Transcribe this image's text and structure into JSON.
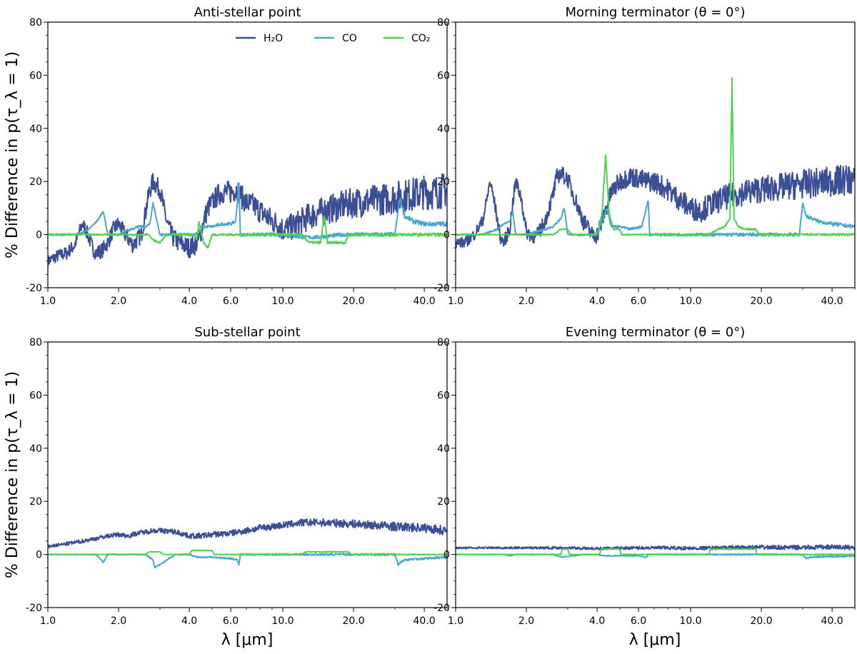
{
  "figure": {
    "ylabel": "% Difference in p(τ_λ = 1)",
    "xlabel": "λ [μm]"
  },
  "legend": {
    "location": "upper-right of first panel",
    "entries": [
      {
        "name": "H₂O",
        "color": "#3a4f96"
      },
      {
        "name": "CO",
        "color": "#4aa6cc"
      },
      {
        "name": "CO₂",
        "color": "#4fd34f"
      }
    ]
  },
  "chart_data": [
    {
      "type": "line",
      "title": "Anti-stellar point",
      "xlabel": "λ [μm]",
      "ylabel": "% Difference in p(τ_λ = 1)",
      "xscale": "log",
      "xlim": [
        1.0,
        50.0
      ],
      "ylim": [
        -20,
        80
      ],
      "xticks": [
        1.0,
        2.0,
        4.0,
        6.0,
        10.0,
        20.0,
        40.0
      ],
      "yticks": [
        -20,
        0,
        20,
        40,
        60,
        80
      ],
      "series": [
        {
          "name": "H₂O",
          "color": "#3a4f96",
          "noise": 4.5,
          "x": [
            1.0,
            1.1,
            1.2,
            1.3,
            1.35,
            1.4,
            1.45,
            1.55,
            1.6,
            1.7,
            1.8,
            1.9,
            2.0,
            2.1,
            2.3,
            2.5,
            2.6,
            2.7,
            2.8,
            3.0,
            3.2,
            3.4,
            3.6,
            3.8,
            4.0,
            4.2,
            4.4,
            4.6,
            4.8,
            5.0,
            5.3,
            5.6,
            6.0,
            6.4,
            6.7,
            7.0,
            7.5,
            8.0,
            8.5,
            9.0,
            9.5,
            10.0,
            11.0,
            12.0,
            13.0,
            15.0,
            18.0,
            20.0,
            25.0,
            30.0,
            35.0,
            40.0,
            45.0,
            50.0
          ],
          "y": [
            -10,
            -8,
            -7,
            -4,
            0,
            4,
            2,
            -5,
            -7,
            -6,
            -3,
            2,
            4,
            1,
            -4,
            0,
            8,
            16,
            20,
            17,
            5,
            -1,
            -3,
            -4,
            -5,
            -4,
            -2,
            5,
            10,
            12,
            15,
            16,
            16,
            17,
            14,
            12,
            11,
            9,
            7,
            5,
            4,
            2,
            3,
            5,
            7,
            9,
            11,
            12,
            13,
            14,
            15,
            16,
            16,
            17
          ]
        },
        {
          "name": "CO",
          "color": "#4aa6cc",
          "noise": 0.6,
          "x": [
            1.0,
            1.35,
            1.5,
            1.65,
            1.72,
            1.8,
            2.0,
            2.4,
            2.6,
            2.72,
            2.8,
            3.0,
            4.2,
            4.6,
            5.0,
            5.5,
            6.0,
            6.3,
            6.5,
            6.6,
            7.0,
            10.0,
            12.0,
            14.0,
            18.0,
            30.0,
            31.5,
            33.0,
            36.0,
            40.0,
            50.0
          ],
          "y": [
            0,
            0,
            2,
            6,
            9,
            0,
            0,
            3,
            3,
            4,
            12,
            0,
            0,
            3,
            3,
            4,
            4,
            5,
            19,
            0,
            0,
            0,
            -1,
            -1,
            0,
            0,
            14,
            7,
            5,
            4,
            4
          ]
        },
        {
          "name": "CO₂",
          "color": "#4fd34f",
          "noise": 0.4,
          "x": [
            1.0,
            2.5,
            2.7,
            2.8,
            3.0,
            3.2,
            4.0,
            4.2,
            4.3,
            4.4,
            4.6,
            4.8,
            5.0,
            12.0,
            13.0,
            14.5,
            15.0,
            15.5,
            16.0,
            17.5,
            18.5,
            19.0,
            50.0
          ],
          "y": [
            0,
            0,
            0,
            -2,
            -3,
            0,
            0,
            0,
            -2,
            5,
            -3,
            -5,
            0,
            0,
            -3,
            -3,
            7,
            -3,
            -3,
            -3,
            -3,
            0,
            0
          ]
        }
      ]
    },
    {
      "type": "line",
      "title": "Morning terminator (θ = 0°)",
      "xlabel": "λ [μm]",
      "ylabel": "",
      "xscale": "log",
      "xlim": [
        1.0,
        50.0
      ],
      "ylim": [
        -20,
        80
      ],
      "xticks": [
        1.0,
        2.0,
        4.0,
        6.0,
        10.0,
        20.0,
        40.0
      ],
      "yticks": [
        -20,
        0,
        20,
        40,
        60,
        80
      ],
      "series": [
        {
          "name": "H₂O",
          "color": "#3a4f96",
          "noise": 4.0,
          "x": [
            1.0,
            1.1,
            1.2,
            1.3,
            1.35,
            1.4,
            1.45,
            1.55,
            1.6,
            1.7,
            1.75,
            1.8,
            1.9,
            2.0,
            2.2,
            2.4,
            2.6,
            2.7,
            2.8,
            3.0,
            3.2,
            3.5,
            3.8,
            4.0,
            4.3,
            4.6,
            5.0,
            5.5,
            6.0,
            6.5,
            7.0,
            8.0,
            9.0,
            10.0,
            11.0,
            12.0,
            14.0,
            17.0,
            20.0,
            25.0,
            30.0,
            40.0,
            50.0
          ],
          "y": [
            -3,
            -3,
            0,
            5,
            12,
            20,
            14,
            -1,
            -3,
            2,
            12,
            20,
            14,
            1,
            -1,
            5,
            15,
            22,
            23,
            21,
            14,
            5,
            0,
            0,
            8,
            16,
            20,
            22,
            21,
            20,
            20,
            17,
            13,
            10,
            9,
            11,
            14,
            16,
            17,
            18,
            19,
            20,
            21
          ]
        },
        {
          "name": "CO",
          "color": "#4aa6cc",
          "noise": 0.5,
          "x": [
            1.0,
            1.3,
            1.5,
            1.6,
            1.7,
            1.75,
            1.8,
            2.0,
            2.4,
            2.6,
            2.8,
            2.9,
            3.0,
            3.5,
            4.0,
            4.4,
            4.6,
            5.0,
            5.5,
            6.2,
            6.6,
            6.7,
            7.0,
            10.0,
            15.0,
            20.0,
            29.0,
            30.0,
            31.0,
            35.0,
            40.0,
            50.0
          ],
          "y": [
            0,
            0,
            2,
            4,
            5,
            9,
            0,
            0,
            2,
            3,
            6,
            10,
            0,
            0,
            0,
            10,
            3,
            3,
            2,
            3,
            13,
            0,
            0,
            0,
            0,
            0,
            0,
            12,
            7,
            5,
            4,
            3
          ]
        },
        {
          "name": "CO₂",
          "color": "#4fd34f",
          "noise": 0.3,
          "x": [
            1.0,
            2.6,
            2.8,
            3.0,
            3.1,
            4.0,
            4.2,
            4.35,
            4.5,
            4.7,
            5.0,
            5.1,
            12.0,
            13.0,
            14.0,
            14.7,
            15.0,
            15.3,
            16.0,
            17.0,
            19.0,
            19.5,
            50.0
          ],
          "y": [
            0,
            0,
            2,
            2,
            0,
            0,
            8,
            30,
            8,
            2,
            2,
            0,
            0,
            2,
            3,
            6,
            59,
            6,
            3,
            2,
            2,
            0,
            0
          ]
        }
      ]
    },
    {
      "type": "line",
      "title": "Sub-stellar point",
      "xlabel": "λ [μm]",
      "ylabel": "% Difference in p(τ_λ = 1)",
      "xscale": "log",
      "xlim": [
        1.0,
        50.0
      ],
      "ylim": [
        -20,
        80
      ],
      "xticks": [
        1.0,
        2.0,
        4.0,
        6.0,
        10.0,
        20.0,
        40.0
      ],
      "yticks": [
        -20,
        0,
        20,
        40,
        60,
        80
      ],
      "series": [
        {
          "name": "H₂O",
          "color": "#3a4f96",
          "noise": 1.2,
          "x": [
            1.0,
            1.2,
            1.4,
            1.6,
            1.8,
            2.0,
            2.2,
            2.4,
            2.6,
            2.8,
            3.0,
            3.5,
            4.0,
            4.5,
            5.0,
            6.0,
            7.0,
            8.0,
            10.0,
            12.0,
            15.0,
            20.0,
            25.0,
            30.0,
            40.0,
            50.0
          ],
          "y": [
            3,
            4,
            5,
            6,
            7,
            7.5,
            7,
            8,
            8.5,
            9,
            9,
            8.5,
            7,
            7,
            7.5,
            8,
            9,
            10,
            11,
            12,
            12,
            11.5,
            11,
            10.5,
            10,
            9
          ]
        },
        {
          "name": "CO",
          "color": "#4aa6cc",
          "noise": 0.3,
          "x": [
            1.0,
            1.6,
            1.65,
            1.72,
            1.8,
            2.6,
            2.7,
            2.8,
            2.85,
            3.5,
            4.0,
            4.3,
            5.0,
            6.0,
            6.4,
            6.5,
            6.6,
            7.0,
            30.0,
            31.0,
            31.5,
            33.0,
            40.0,
            50.0
          ],
          "y": [
            0,
            0,
            -1,
            -3,
            0,
            0,
            -1,
            -2,
            -5,
            0,
            0,
            -1,
            -1,
            -1.5,
            -2,
            -4,
            0,
            0,
            0,
            -4,
            -3,
            -2,
            -1.5,
            -1
          ]
        },
        {
          "name": "CO₂",
          "color": "#4fd34f",
          "noise": 0.1,
          "x": [
            1.0,
            2.6,
            2.7,
            3.0,
            3.1,
            4.0,
            4.1,
            5.0,
            5.1,
            12.0,
            12.5,
            19.0,
            19.5,
            50.0
          ],
          "y": [
            0,
            0,
            1,
            1,
            0,
            0,
            1.5,
            1.5,
            0,
            0,
            1,
            1,
            0,
            0
          ]
        }
      ]
    },
    {
      "type": "line",
      "title": "Evening terminator (θ = 0°)",
      "xlabel": "λ [μm]",
      "ylabel": "",
      "xscale": "log",
      "xlim": [
        1.0,
        50.0
      ],
      "ylim": [
        -20,
        80
      ],
      "xticks": [
        1.0,
        2.0,
        4.0,
        6.0,
        10.0,
        20.0,
        40.0
      ],
      "yticks": [
        -20,
        0,
        20,
        40,
        60,
        80
      ],
      "series": [
        {
          "name": "H₂O",
          "color": "#3a4f96",
          "noise": 0.6,
          "x": [
            1.0,
            1.5,
            2.0,
            2.5,
            3.0,
            3.5,
            4.0,
            5.0,
            6.0,
            8.0,
            10.0,
            15.0,
            20.0,
            30.0,
            40.0,
            50.0
          ],
          "y": [
            2.5,
            2.5,
            2.5,
            2.5,
            2.5,
            2.3,
            2.2,
            2.4,
            2.5,
            2.5,
            2.3,
            2.6,
            2.7,
            2.6,
            2.8,
            2.6
          ]
        },
        {
          "name": "CO",
          "color": "#4aa6cc",
          "noise": 0.2,
          "x": [
            1.0,
            1.6,
            1.7,
            1.8,
            2.6,
            2.7,
            2.85,
            3.5,
            4.0,
            4.3,
            6.0,
            6.5,
            6.6,
            10.0,
            12.0,
            20.0,
            30.0,
            31.0,
            33.0,
            50.0
          ],
          "y": [
            0,
            0,
            -0.5,
            0,
            0,
            -0.5,
            -1,
            0,
            0,
            -0.5,
            -0.5,
            -1,
            0,
            0,
            0,
            0,
            0,
            -1.5,
            -1,
            -0.5
          ]
        },
        {
          "name": "CO₂",
          "color": "#4fd34f",
          "noise": 0.1,
          "x": [
            1.0,
            2.8,
            2.85,
            3.0,
            3.05,
            4.1,
            4.15,
            5.0,
            5.05,
            12.0,
            12.1,
            19.0,
            19.1,
            50.0
          ],
          "y": [
            0,
            0,
            2,
            2,
            0,
            0,
            2,
            2,
            0,
            0,
            2,
            2,
            0,
            0
          ]
        }
      ]
    }
  ]
}
